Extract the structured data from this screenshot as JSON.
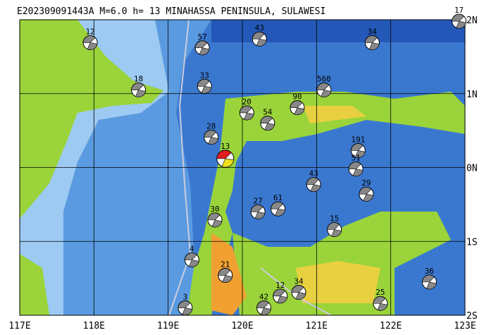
{
  "title": "E202309091443A M=6.0 h= 13 MINAHASSA PENINSULA, SULAWESI",
  "lon_labels": [
    "117E",
    "118E",
    "119E",
    "120E",
    "121E",
    "122E",
    "123E"
  ],
  "lat_labels": [
    "2N",
    "1N",
    "0N",
    "1S",
    "2S"
  ],
  "main_event": {
    "lon": 119.77,
    "lat": 0.12,
    "depth": 13
  },
  "events": [
    {
      "lon": 117.95,
      "lat": 1.69,
      "depth": 12
    },
    {
      "lon": 118.6,
      "lat": 1.05,
      "depth": 18
    },
    {
      "lon": 119.46,
      "lat": 1.62,
      "depth": 57
    },
    {
      "lon": 119.49,
      "lat": 1.1,
      "depth": 33
    },
    {
      "lon": 119.58,
      "lat": 0.41,
      "depth": 28
    },
    {
      "lon": 119.23,
      "lat": -1.9,
      "depth": 3
    },
    {
      "lon": 119.32,
      "lat": -1.25,
      "depth": 4
    },
    {
      "lon": 119.77,
      "lat": -1.46,
      "depth": 21
    },
    {
      "lon": 119.63,
      "lat": -0.71,
      "depth": 30
    },
    {
      "lon": 120.21,
      "lat": -0.6,
      "depth": 27
    },
    {
      "lon": 120.48,
      "lat": -0.56,
      "depth": 61
    },
    {
      "lon": 120.29,
      "lat": -1.9,
      "depth": 42
    },
    {
      "lon": 120.51,
      "lat": -1.74,
      "depth": 12
    },
    {
      "lon": 120.76,
      "lat": -1.69,
      "depth": 34
    },
    {
      "lon": 120.96,
      "lat": -0.23,
      "depth": 43
    },
    {
      "lon": 121.24,
      "lat": -0.84,
      "depth": 15
    },
    {
      "lon": 121.56,
      "lat": 0.23,
      "depth": 191
    },
    {
      "lon": 121.67,
      "lat": -0.36,
      "depth": 29
    },
    {
      "lon": 121.75,
      "lat": 1.69,
      "depth": 34
    },
    {
      "lon": 122.92,
      "lat": 1.98,
      "depth": 17
    },
    {
      "lon": 122.52,
      "lat": -1.55,
      "depth": 36
    },
    {
      "lon": 121.86,
      "lat": -1.84,
      "depth": 25
    },
    {
      "lon": 120.34,
      "lat": 0.6,
      "depth": 54
    },
    {
      "lon": 120.74,
      "lat": 0.81,
      "depth": 90
    },
    {
      "lon": 121.1,
      "lat": 1.05,
      "depth": 560
    },
    {
      "lon": 120.06,
      "lat": 0.74,
      "depth": 20
    },
    {
      "lon": 121.53,
      "lat": -0.02,
      "depth": 51
    },
    {
      "lon": 120.23,
      "lat": 1.74,
      "depth": 43
    }
  ]
}
